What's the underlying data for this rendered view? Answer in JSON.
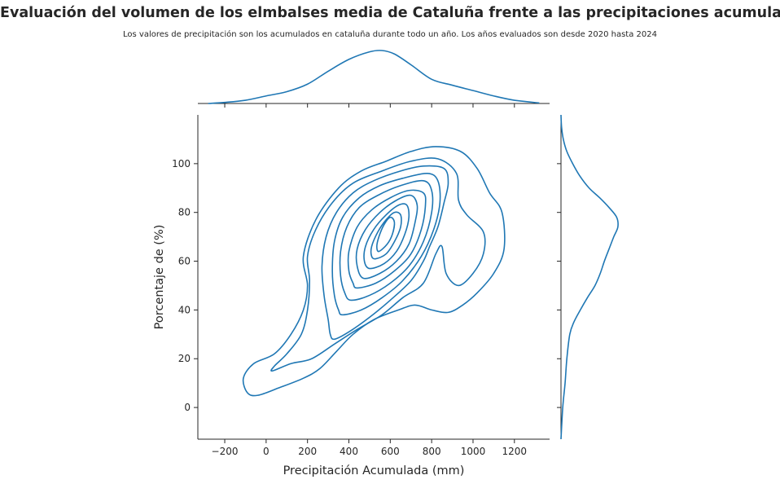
{
  "title": "Evaluación del volumen de los elmbalses media de Cataluña frente a las precipitaciones acumuladas",
  "subtitle": "Los valores de precipitación son los acumulados en cataluña durante todo un año. Los años evaluados son desde 2020 hasta 2024",
  "chart_data": {
    "type": "kde-jointplot",
    "xlabel": "Precipitación Acumulada (mm)",
    "ylabel": "Porcentaje de  (%)",
    "xlim": [
      -330,
      1370
    ],
    "ylim": [
      -13,
      120
    ],
    "xticks": [
      -200,
      0,
      200,
      400,
      600,
      800,
      1000,
      1200
    ],
    "xtick_labels": [
      "−200",
      "0",
      "200",
      "400",
      "600",
      "800",
      "1000",
      "1200"
    ],
    "yticks": [
      0,
      20,
      40,
      60,
      80,
      100
    ],
    "ytick_labels": [
      "0",
      "20",
      "40",
      "60",
      "80",
      "100"
    ],
    "color": "#1f77b4",
    "grid": false,
    "marginal_x": [
      [
        -280,
        0.0
      ],
      [
        -200,
        0.02
      ],
      [
        -100,
        0.06
      ],
      [
        0,
        0.14
      ],
      [
        100,
        0.22
      ],
      [
        200,
        0.36
      ],
      [
        300,
        0.6
      ],
      [
        400,
        0.82
      ],
      [
        500,
        0.96
      ],
      [
        560,
        0.985
      ],
      [
        620,
        0.92
      ],
      [
        700,
        0.72
      ],
      [
        800,
        0.45
      ],
      [
        900,
        0.34
      ],
      [
        1000,
        0.24
      ],
      [
        1100,
        0.14
      ],
      [
        1200,
        0.06
      ],
      [
        1320,
        0.01
      ]
    ],
    "marginal_y": [
      [
        -13,
        0.0
      ],
      [
        0,
        0.03
      ],
      [
        10,
        0.07
      ],
      [
        20,
        0.1
      ],
      [
        30,
        0.15
      ],
      [
        35,
        0.22
      ],
      [
        40,
        0.33
      ],
      [
        45,
        0.45
      ],
      [
        50,
        0.58
      ],
      [
        55,
        0.67
      ],
      [
        60,
        0.74
      ],
      [
        65,
        0.82
      ],
      [
        70,
        0.9
      ],
      [
        74,
        0.97
      ],
      [
        78,
        0.95
      ],
      [
        82,
        0.82
      ],
      [
        86,
        0.66
      ],
      [
        90,
        0.48
      ],
      [
        95,
        0.32
      ],
      [
        100,
        0.2
      ],
      [
        105,
        0.1
      ],
      [
        110,
        0.04
      ],
      [
        115,
        0.01
      ],
      [
        120,
        0.0
      ]
    ],
    "contours": [
      [
        [
          -40,
          5
        ],
        [
          60,
          8
        ],
        [
          180,
          12
        ],
        [
          260,
          16
        ],
        [
          340,
          23
        ],
        [
          420,
          30
        ],
        [
          520,
          36
        ],
        [
          640,
          40
        ],
        [
          720,
          42
        ],
        [
          800,
          40
        ],
        [
          880,
          39
        ],
        [
          950,
          42
        ],
        [
          1020,
          47
        ],
        [
          1100,
          55
        ],
        [
          1150,
          65
        ],
        [
          1140,
          80
        ],
        [
          1080,
          88
        ],
        [
          1020,
          98
        ],
        [
          940,
          105
        ],
        [
          820,
          107
        ],
        [
          700,
          105
        ],
        [
          580,
          101
        ],
        [
          460,
          97
        ],
        [
          350,
          90
        ],
        [
          240,
          77
        ],
        [
          180,
          62
        ],
        [
          200,
          50
        ],
        [
          180,
          40
        ],
        [
          120,
          30
        ],
        [
          40,
          22
        ],
        [
          -60,
          18
        ],
        [
          -110,
          12
        ],
        [
          -90,
          6
        ],
        [
          -40,
          5
        ]
      ],
      [
        [
          30,
          15
        ],
        [
          120,
          18
        ],
        [
          220,
          20
        ],
        [
          330,
          26
        ],
        [
          440,
          32
        ],
        [
          560,
          38
        ],
        [
          660,
          45
        ],
        [
          760,
          51
        ],
        [
          820,
          63
        ],
        [
          850,
          66
        ],
        [
          870,
          55
        ],
        [
          930,
          50
        ],
        [
          1000,
          55
        ],
        [
          1050,
          63
        ],
        [
          1050,
          72
        ],
        [
          970,
          79
        ],
        [
          930,
          85
        ],
        [
          920,
          96
        ],
        [
          830,
          102
        ],
        [
          700,
          101
        ],
        [
          560,
          97
        ],
        [
          420,
          92
        ],
        [
          320,
          84
        ],
        [
          240,
          73
        ],
        [
          200,
          62
        ],
        [
          210,
          52
        ],
        [
          200,
          40
        ],
        [
          170,
          30
        ],
        [
          100,
          22
        ],
        [
          40,
          17
        ],
        [
          30,
          15
        ]
      ],
      [
        [
          330,
          28
        ],
        [
          400,
          31
        ],
        [
          500,
          37
        ],
        [
          600,
          44
        ],
        [
          700,
          52
        ],
        [
          760,
          60
        ],
        [
          790,
          66
        ],
        [
          830,
          74
        ],
        [
          860,
          84
        ],
        [
          880,
          92
        ],
        [
          860,
          98
        ],
        [
          760,
          99
        ],
        [
          650,
          97
        ],
        [
          520,
          93
        ],
        [
          420,
          88
        ],
        [
          340,
          80
        ],
        [
          290,
          70
        ],
        [
          270,
          58
        ],
        [
          280,
          46
        ],
        [
          300,
          36
        ],
        [
          310,
          30
        ],
        [
          330,
          28
        ]
      ],
      [
        [
          370,
          38
        ],
        [
          460,
          40
        ],
        [
          560,
          45
        ],
        [
          660,
          52
        ],
        [
          750,
          62
        ],
        [
          810,
          73
        ],
        [
          840,
          84
        ],
        [
          830,
          93
        ],
        [
          780,
          96
        ],
        [
          660,
          94
        ],
        [
          550,
          91
        ],
        [
          450,
          86
        ],
        [
          370,
          78
        ],
        [
          330,
          68
        ],
        [
          320,
          56
        ],
        [
          330,
          46
        ],
        [
          350,
          40
        ],
        [
          370,
          38
        ]
      ],
      [
        [
          410,
          44
        ],
        [
          500,
          46
        ],
        [
          600,
          51
        ],
        [
          690,
          58
        ],
        [
          760,
          68
        ],
        [
          800,
          80
        ],
        [
          800,
          89
        ],
        [
          760,
          93
        ],
        [
          650,
          91
        ],
        [
          540,
          87
        ],
        [
          450,
          82
        ],
        [
          390,
          74
        ],
        [
          360,
          64
        ],
        [
          360,
          54
        ],
        [
          380,
          47
        ],
        [
          410,
          44
        ]
      ],
      [
        [
          440,
          49
        ],
        [
          530,
          51
        ],
        [
          620,
          56
        ],
        [
          700,
          63
        ],
        [
          750,
          73
        ],
        [
          770,
          83
        ],
        [
          760,
          88
        ],
        [
          690,
          89
        ],
        [
          600,
          86
        ],
        [
          510,
          81
        ],
        [
          440,
          74
        ],
        [
          400,
          64
        ],
        [
          400,
          56
        ],
        [
          420,
          51
        ],
        [
          440,
          49
        ]
      ],
      [
        [
          470,
          53
        ],
        [
          550,
          55
        ],
        [
          630,
          60
        ],
        [
          690,
          67
        ],
        [
          720,
          76
        ],
        [
          730,
          83
        ],
        [
          700,
          87
        ],
        [
          630,
          85
        ],
        [
          550,
          80
        ],
        [
          480,
          73
        ],
        [
          440,
          65
        ],
        [
          440,
          58
        ],
        [
          470,
          53
        ]
      ],
      [
        [
          500,
          57
        ],
        [
          570,
          59
        ],
        [
          630,
          64
        ],
        [
          670,
          71
        ],
        [
          690,
          78
        ],
        [
          680,
          83
        ],
        [
          640,
          83
        ],
        [
          580,
          79
        ],
        [
          520,
          73
        ],
        [
          480,
          66
        ],
        [
          475,
          60
        ],
        [
          500,
          57
        ]
      ],
      [
        [
          530,
          61
        ],
        [
          580,
          63
        ],
        [
          620,
          68
        ],
        [
          650,
          74
        ],
        [
          650,
          79
        ],
        [
          620,
          80
        ],
        [
          580,
          77
        ],
        [
          540,
          72
        ],
        [
          510,
          66
        ],
        [
          510,
          62
        ],
        [
          530,
          61
        ]
      ],
      [
        [
          545,
          64
        ],
        [
          585,
          67
        ],
        [
          610,
          71
        ],
        [
          620,
          76
        ],
        [
          600,
          78
        ],
        [
          570,
          75
        ],
        [
          545,
          70
        ],
        [
          535,
          66
        ],
        [
          545,
          64
        ]
      ]
    ]
  }
}
